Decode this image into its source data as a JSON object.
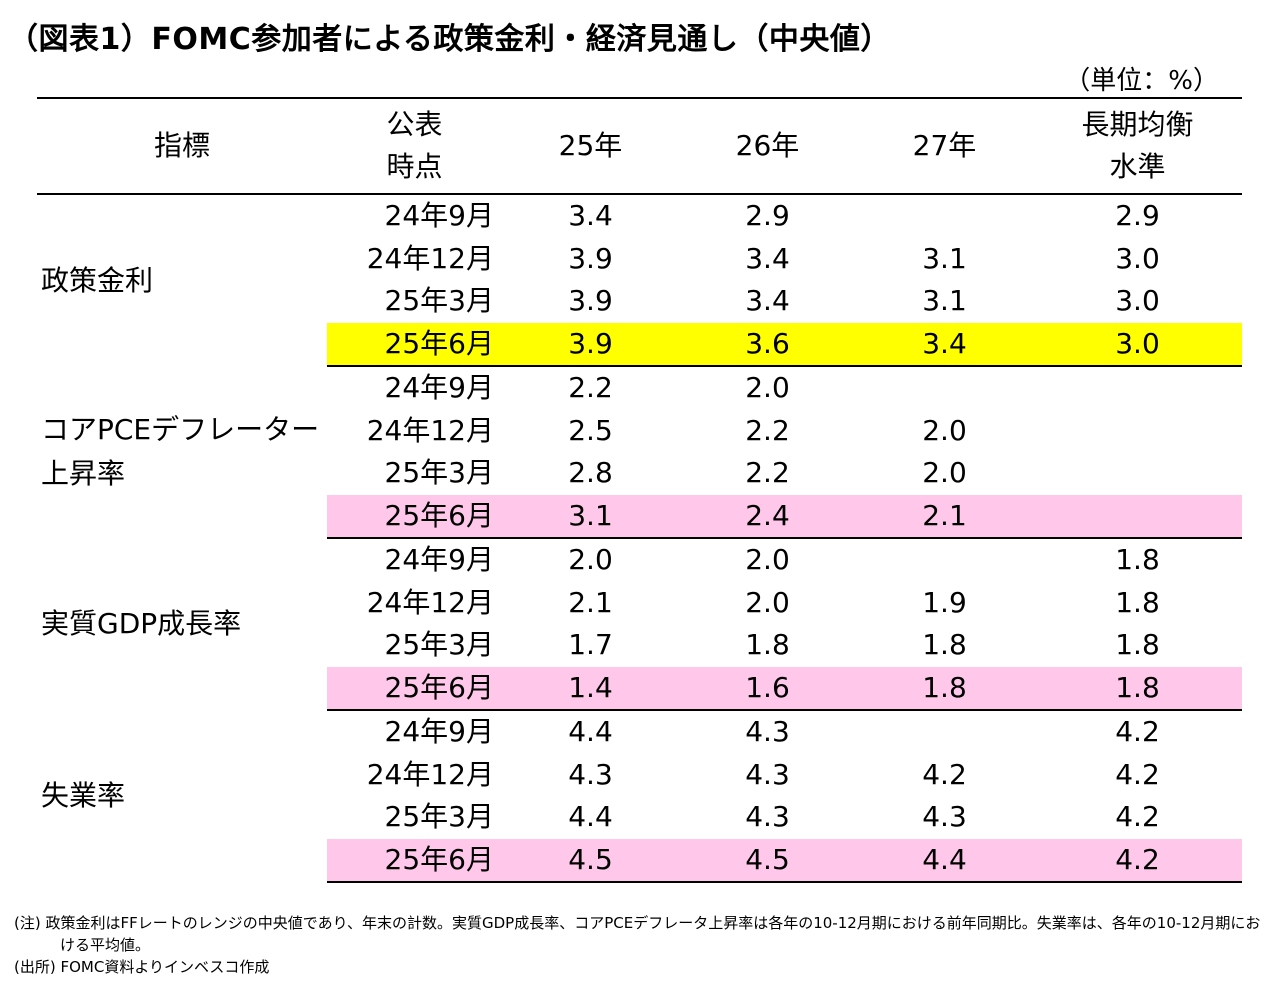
{
  "title": "（図表1）FOMC参加者による政策金利・経済見通し（中央値）",
  "unit": "（単位：%）",
  "table": {
    "headers": {
      "indicator": "指標",
      "date_line1": "公表",
      "date_line2": "時点",
      "y25": "25年",
      "y26": "26年",
      "y27": "27年",
      "lr_line1": "長期均衡",
      "lr_line2": "水準"
    },
    "groups": [
      {
        "name": "政策金利",
        "rows": [
          {
            "date": "24年9月",
            "y25": "3.4",
            "y26": "2.9",
            "y27": "",
            "lr": "2.9"
          },
          {
            "date": "24年12月",
            "y25": "3.9",
            "y26": "3.4",
            "y27": "3.1",
            "lr": "3.0"
          },
          {
            "date": "25年3月",
            "y25": "3.9",
            "y26": "3.4",
            "y27": "3.1",
            "lr": "3.0"
          },
          {
            "date": "25年6月",
            "y25": "3.9",
            "y26": "3.6",
            "y27": "3.4",
            "lr": "3.0"
          }
        ]
      },
      {
        "name": "コアPCEデフレーター上昇率",
        "rows": [
          {
            "date": "24年9月",
            "y25": "2.2",
            "y26": "2.0",
            "y27": "",
            "lr": ""
          },
          {
            "date": "24年12月",
            "y25": "2.5",
            "y26": "2.2",
            "y27": "2.0",
            "lr": ""
          },
          {
            "date": "25年3月",
            "y25": "2.8",
            "y26": "2.2",
            "y27": "2.0",
            "lr": ""
          },
          {
            "date": "25年6月",
            "y25": "3.1",
            "y26": "2.4",
            "y27": "2.1",
            "lr": ""
          }
        ]
      },
      {
        "name": "実質GDP成長率",
        "rows": [
          {
            "date": "24年9月",
            "y25": "2.0",
            "y26": "2.0",
            "y27": "",
            "lr": "1.8"
          },
          {
            "date": "24年12月",
            "y25": "2.1",
            "y26": "2.0",
            "y27": "1.9",
            "lr": "1.8"
          },
          {
            "date": "25年3月",
            "y25": "1.7",
            "y26": "1.8",
            "y27": "1.8",
            "lr": "1.8"
          },
          {
            "date": "25年6月",
            "y25": "1.4",
            "y26": "1.6",
            "y27": "1.8",
            "lr": "1.8"
          }
        ]
      },
      {
        "name": "失業率",
        "rows": [
          {
            "date": "24年9月",
            "y25": "4.4",
            "y26": "4.3",
            "y27": "",
            "lr": "4.2"
          },
          {
            "date": "24年12月",
            "y25": "4.3",
            "y26": "4.3",
            "y27": "4.2",
            "lr": "4.2"
          },
          {
            "date": "25年3月",
            "y25": "4.4",
            "y26": "4.3",
            "y27": "4.3",
            "lr": "4.2"
          },
          {
            "date": "25年6月",
            "y25": "4.5",
            "y26": "4.5",
            "y27": "4.4",
            "lr": "4.2"
          }
        ]
      }
    ]
  },
  "highlight_colors": {
    "yellow": "#ffff00",
    "pink": "#ffc8ea"
  },
  "notes": {
    "note": "(注) 政策金利はFFレートのレンジの中央値であり、年末の計数。実質GDP成長率、コアPCEデフレータ上昇率は各年の10-12月期における前年同期比。失業率は、各年の10-12月期における平均値。",
    "source": "(出所) FOMC資料よりインベスコ作成"
  }
}
